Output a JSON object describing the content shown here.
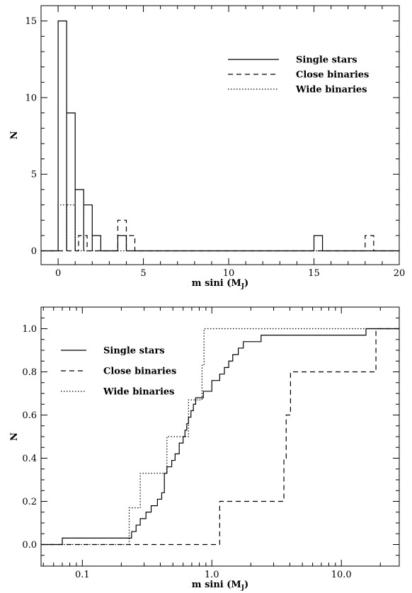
{
  "chart_data": [
    {
      "type": "histogram",
      "xlabel": "m sini (M",
      "xlabel_sub": "J",
      "xlabel_close": ")",
      "ylabel": "N",
      "xlim": [
        -1,
        20
      ],
      "ylim": [
        -0.9,
        16
      ],
      "x_ticks": [
        0,
        5,
        10,
        15,
        20
      ],
      "x_tick_labels": [
        "0",
        "5",
        "10",
        "15",
        "20"
      ],
      "y_ticks": [
        0,
        5,
        10,
        15
      ],
      "y_tick_labels": [
        "0",
        "5",
        "10",
        "15"
      ],
      "bin_width": 0.5,
      "legend_position": "top-right",
      "series": [
        {
          "name": "Single stars",
          "style": "solid",
          "bins": [
            [
              0,
              15
            ],
            [
              0.5,
              9
            ],
            [
              1,
              4
            ],
            [
              1.5,
              3
            ],
            [
              2,
              1
            ],
            [
              3.5,
              1
            ],
            [
              15,
              1
            ]
          ]
        },
        {
          "name": "Close binaries",
          "style": "dashed",
          "bins": [
            [
              1.2,
              1
            ],
            [
              3.5,
              2
            ],
            [
              4,
              1
            ],
            [
              18,
              1
            ]
          ]
        },
        {
          "name": "Wide binaries",
          "style": "dotted",
          "bins": [
            [
              0,
              3
            ],
            [
              0.5,
              3
            ]
          ]
        }
      ]
    },
    {
      "type": "line",
      "xscale": "log",
      "xlabel": "m sini (M",
      "xlabel_sub": "J",
      "xlabel_close": ")",
      "ylabel": "N",
      "xlim": [
        0.048,
        28
      ],
      "ylim": [
        -0.1,
        1.1
      ],
      "x_ticks": [
        0.1,
        1,
        10
      ],
      "x_tick_labels": [
        "0.1",
        "1.0",
        "10.0"
      ],
      "y_ticks": [
        0,
        0.2,
        0.4,
        0.6,
        0.8,
        1.0
      ],
      "y_tick_labels": [
        "0.0",
        "0.2",
        "0.4",
        "0.6",
        "0.8",
        "1.0"
      ],
      "legend_position": "top-left",
      "series": [
        {
          "name": "Single stars",
          "style": "solid",
          "step": true,
          "x": [
            0.07,
            0.24,
            0.26,
            0.28,
            0.31,
            0.34,
            0.38,
            0.41,
            0.43,
            0.45,
            0.49,
            0.52,
            0.56,
            0.6,
            0.62,
            0.64,
            0.66,
            0.69,
            0.72,
            0.75,
            0.86,
            1.0,
            1.15,
            1.25,
            1.35,
            1.45,
            1.6,
            1.75,
            1.95,
            2.4,
            3.7,
            15.5
          ],
          "y": [
            0.03,
            0.06,
            0.09,
            0.12,
            0.15,
            0.18,
            0.21,
            0.24,
            0.33,
            0.36,
            0.39,
            0.42,
            0.47,
            0.5,
            0.53,
            0.56,
            0.59,
            0.62,
            0.65,
            0.68,
            0.71,
            0.76,
            0.79,
            0.82,
            0.85,
            0.88,
            0.91,
            0.94,
            0.94,
            0.97,
            0.97,
            1.0
          ]
        },
        {
          "name": "Close binaries",
          "style": "dashed",
          "step": true,
          "x": [
            1.15,
            3.6,
            3.75,
            4.05,
            18.5
          ],
          "y": [
            0.2,
            0.4,
            0.6,
            0.8,
            1.0
          ]
        },
        {
          "name": "Wide binaries",
          "style": "dotted",
          "step": true,
          "x": [
            0.23,
            0.28,
            0.45,
            0.48,
            0.66,
            0.7,
            0.84,
            0.87
          ],
          "y": [
            0.17,
            0.33,
            0.5,
            0.5,
            0.67,
            0.67,
            0.83,
            1.0
          ]
        }
      ]
    }
  ]
}
